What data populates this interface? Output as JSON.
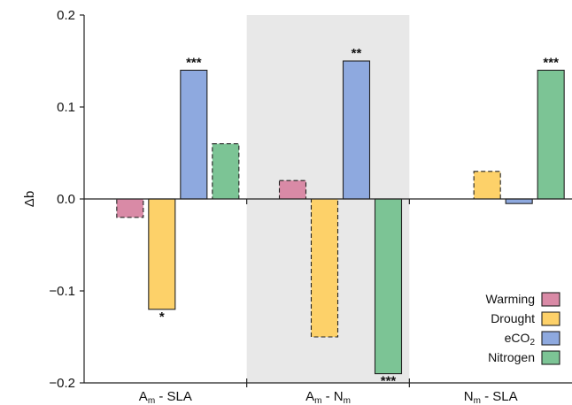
{
  "chart_data": {
    "type": "bar",
    "title": "",
    "xlabel": "",
    "ylabel": "Δb",
    "ylim": [
      -0.2,
      0.2
    ],
    "yticks": [
      0.2,
      0.1,
      0.0,
      -0.1,
      -0.2
    ],
    "ytick_labels": [
      "0.2",
      "0.1",
      "0.0",
      "−0.1",
      "−0.2"
    ],
    "grid": false,
    "legend_position": "bottom-right",
    "shaded_group": 1,
    "categories": [
      {
        "main": "A",
        "sub": "m",
        "rest": " - SLA"
      },
      {
        "main": "A",
        "sub": "m",
        "rest": " - N",
        "sub2": "m"
      },
      {
        "main": "N",
        "sub": "m",
        "rest": " - SLA"
      }
    ],
    "series": [
      {
        "name": "Warming",
        "sub": "",
        "color": "#d98aa6",
        "values": [
          -0.02,
          0.02,
          null
        ],
        "dashed": [
          true,
          true,
          false
        ],
        "significance": [
          "",
          "",
          ""
        ]
      },
      {
        "name": "Drought",
        "sub": "",
        "color": "#fdd169",
        "values": [
          -0.12,
          -0.15,
          0.03
        ],
        "dashed": [
          false,
          true,
          true
        ],
        "significance": [
          "*",
          "",
          ""
        ]
      },
      {
        "name": "eCO",
        "sub": "2",
        "color": "#8ea9df",
        "values": [
          0.14,
          0.15,
          -0.005
        ],
        "dashed": [
          false,
          false,
          false
        ],
        "significance": [
          "***",
          "**",
          ""
        ]
      },
      {
        "name": "Nitrogen",
        "sub": "",
        "color": "#7cc495",
        "values": [
          0.06,
          -0.19,
          0.14
        ],
        "dashed": [
          true,
          false,
          false
        ],
        "significance": [
          "",
          "***",
          "***"
        ]
      }
    ]
  }
}
